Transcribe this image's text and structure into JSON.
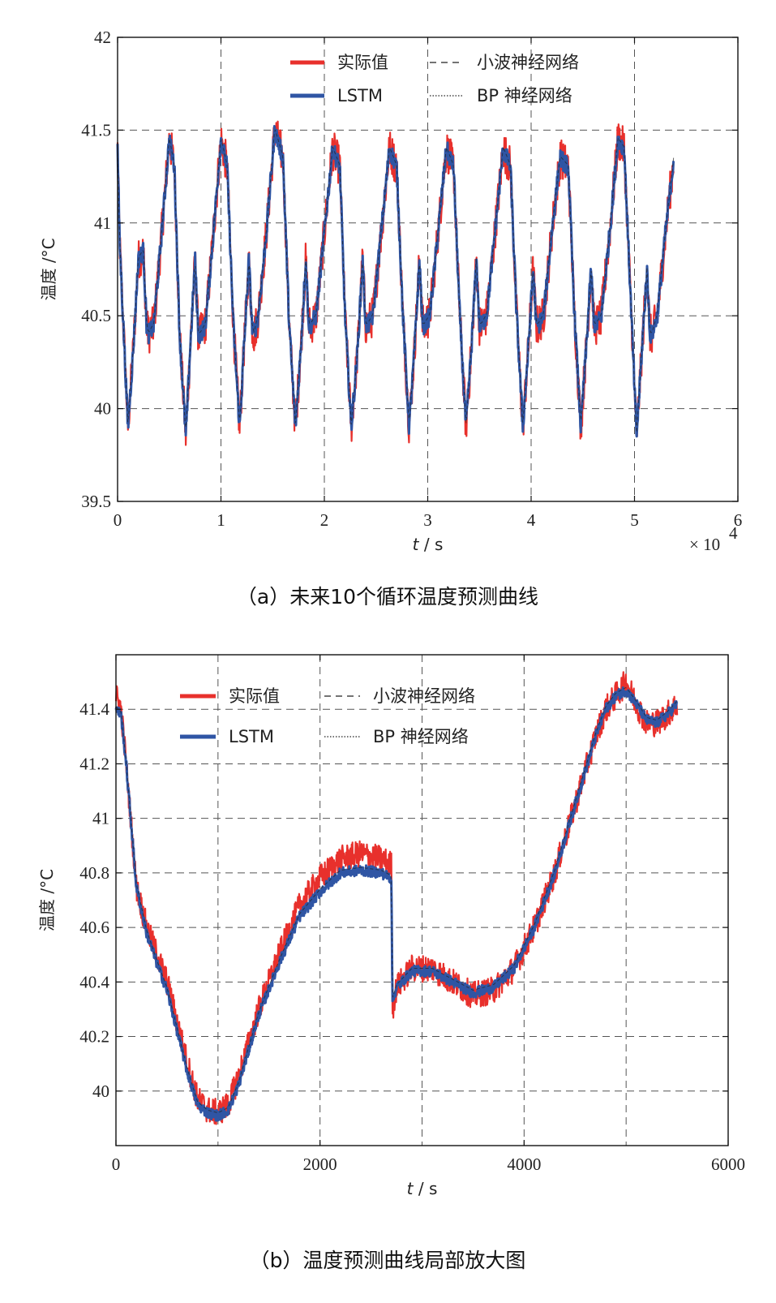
{
  "chart_data": [
    {
      "type": "line",
      "caption": "（a）未来10个循环温度预测曲线",
      "xlabel_italic": "t",
      "xlabel_unit": " / s",
      "ylabel": "温度 /°C",
      "xlim": [
        0,
        6
      ],
      "ylim": [
        39.5,
        42
      ],
      "x_ticks": [
        "0",
        "1",
        "2",
        "3",
        "4",
        "5",
        "6"
      ],
      "y_ticks": [
        "39.5",
        "40",
        "40.5",
        "41",
        "41.5",
        "42"
      ],
      "x_multiplier": "× 10",
      "x_multiplier_exp": "4",
      "grid": true,
      "legend": [
        {
          "label": "实际值",
          "style": "solid",
          "color": "#e8302c"
        },
        {
          "label": "LSTM",
          "style": "solid",
          "color": "#2f55a4"
        },
        {
          "label": "小波神经网络",
          "style": "dashed",
          "color": "#222222"
        },
        {
          "label": "BP 神经网络",
          "style": "dotted",
          "color": "#222222"
        }
      ],
      "series": [
        {
          "name": "实际值",
          "color": "#e8302c",
          "noise": 0.11,
          "x": [
            0,
            0.02,
            0.06,
            0.1,
            0.15,
            0.2,
            0.25,
            0.28,
            0.3,
            0.35,
            0.42,
            0.5,
            0.55,
            0.6,
            0.66,
            0.7,
            0.75,
            0.78,
            0.8,
            0.85,
            0.92,
            1.0,
            1.06,
            1.12,
            1.18,
            1.22,
            1.27,
            1.3,
            1.32,
            1.36,
            1.44,
            1.52,
            1.6,
            1.66,
            1.72,
            1.77,
            1.82,
            1.85,
            1.87,
            1.92,
            2.0,
            2.08,
            2.15,
            2.2,
            2.26,
            2.32,
            2.37,
            2.4,
            2.42,
            2.47,
            2.55,
            2.63,
            2.7,
            2.76,
            2.82,
            2.87,
            2.92,
            2.95,
            2.97,
            3.02,
            3.1,
            3.18,
            3.25,
            3.31,
            3.37,
            3.42,
            3.47,
            3.5,
            3.52,
            3.57,
            3.65,
            3.73,
            3.8,
            3.86,
            3.92,
            3.97,
            4.02,
            4.05,
            4.07,
            4.12,
            4.2,
            4.28,
            4.36,
            4.42,
            4.48,
            4.53,
            4.58,
            4.61,
            4.63,
            4.68,
            4.76,
            4.84,
            4.9,
            4.97,
            5.02,
            5.07,
            5.12,
            5.15,
            5.17,
            5.22,
            5.3,
            5.38
          ],
          "y": [
            41.4,
            40.9,
            40.4,
            39.9,
            40.3,
            40.8,
            40.85,
            40.45,
            40.4,
            40.45,
            40.9,
            41.45,
            41.3,
            40.4,
            39.85,
            40.3,
            40.8,
            40.4,
            40.4,
            40.45,
            40.9,
            41.45,
            41.3,
            40.45,
            39.9,
            40.3,
            40.8,
            40.45,
            40.4,
            40.5,
            40.95,
            41.5,
            41.35,
            40.45,
            39.9,
            40.3,
            40.8,
            40.45,
            40.45,
            40.5,
            40.95,
            41.4,
            41.3,
            40.5,
            39.9,
            40.3,
            40.8,
            40.45,
            40.45,
            40.5,
            40.95,
            41.4,
            41.3,
            40.5,
            39.9,
            40.3,
            40.8,
            40.45,
            40.45,
            40.5,
            40.95,
            41.4,
            41.3,
            40.5,
            39.9,
            40.3,
            40.8,
            40.45,
            40.45,
            40.5,
            40.95,
            41.4,
            41.3,
            40.5,
            39.9,
            40.3,
            40.75,
            40.45,
            40.45,
            40.5,
            40.95,
            41.35,
            41.3,
            40.5,
            39.9,
            40.3,
            40.75,
            40.45,
            40.45,
            40.5,
            40.95,
            41.45,
            41.4,
            40.5,
            39.85,
            40.3,
            40.75,
            40.4,
            40.4,
            40.5,
            40.95,
            41.35
          ]
        },
        {
          "name": "LSTM",
          "color": "#2f55a4",
          "noise": 0.05,
          "x": [
            0,
            0.02,
            0.06,
            0.1,
            0.15,
            0.2,
            0.25,
            0.28,
            0.3,
            0.35,
            0.42,
            0.5,
            0.55,
            0.6,
            0.66,
            0.7,
            0.75,
            0.78,
            0.8,
            0.85,
            0.92,
            1.0,
            1.06,
            1.12,
            1.18,
            1.22,
            1.27,
            1.3,
            1.32,
            1.36,
            1.44,
            1.52,
            1.6,
            1.66,
            1.72,
            1.77,
            1.82,
            1.85,
            1.87,
            1.92,
            2.0,
            2.08,
            2.15,
            2.2,
            2.26,
            2.32,
            2.37,
            2.4,
            2.42,
            2.47,
            2.55,
            2.63,
            2.7,
            2.76,
            2.82,
            2.87,
            2.92,
            2.95,
            2.97,
            3.02,
            3.1,
            3.18,
            3.25,
            3.31,
            3.37,
            3.42,
            3.47,
            3.5,
            3.52,
            3.57,
            3.65,
            3.73,
            3.8,
            3.86,
            3.92,
            3.97,
            4.02,
            4.05,
            4.07,
            4.12,
            4.2,
            4.28,
            4.36,
            4.42,
            4.48,
            4.53,
            4.58,
            4.61,
            4.63,
            4.68,
            4.76,
            4.84,
            4.9,
            4.97,
            5.02,
            5.07,
            5.12,
            5.15,
            5.17,
            5.22,
            5.3,
            5.38
          ],
          "y": [
            41.4,
            40.9,
            40.4,
            39.9,
            40.3,
            40.8,
            40.85,
            40.45,
            40.4,
            40.45,
            40.9,
            41.45,
            41.3,
            40.4,
            39.85,
            40.3,
            40.8,
            40.4,
            40.4,
            40.45,
            40.9,
            41.45,
            41.3,
            40.45,
            39.9,
            40.3,
            40.8,
            40.45,
            40.4,
            40.5,
            40.95,
            41.5,
            41.35,
            40.45,
            39.9,
            40.3,
            40.8,
            40.45,
            40.45,
            40.5,
            40.95,
            41.4,
            41.3,
            40.5,
            39.9,
            40.3,
            40.8,
            40.45,
            40.45,
            40.5,
            40.95,
            41.4,
            41.3,
            40.5,
            39.9,
            40.3,
            40.8,
            40.45,
            40.45,
            40.5,
            40.95,
            41.4,
            41.3,
            40.5,
            39.9,
            40.3,
            40.8,
            40.45,
            40.45,
            40.5,
            40.95,
            41.4,
            41.3,
            40.5,
            39.9,
            40.3,
            40.75,
            40.45,
            40.45,
            40.5,
            40.95,
            41.35,
            41.3,
            40.5,
            39.9,
            40.3,
            40.75,
            40.45,
            40.45,
            40.5,
            40.95,
            41.45,
            41.4,
            40.5,
            39.85,
            40.3,
            40.75,
            40.4,
            40.4,
            40.5,
            40.95,
            41.35
          ]
        }
      ]
    },
    {
      "type": "line",
      "caption": "（b）温度预测曲线局部放大图",
      "xlabel_italic": "t",
      "xlabel_unit": " / s",
      "ylabel": "温度 /°C",
      "xlim": [
        0,
        6000
      ],
      "ylim": [
        39.8,
        41.6
      ],
      "y_tick_values": [
        40,
        40.2,
        40.4,
        40.6,
        40.8,
        41,
        41.2,
        41.4
      ],
      "x_ticks": [
        "0",
        "2000",
        "4000",
        "6000"
      ],
      "x_tick_values": [
        0,
        2000,
        4000,
        6000
      ],
      "y_ticks": [
        "40",
        "40.2",
        "40.4",
        "40.6",
        "40.8",
        "41",
        "41.2",
        "41.4"
      ],
      "x_gridlines": [
        0,
        1000,
        2000,
        3000,
        4000,
        5000,
        6000
      ],
      "grid": true,
      "legend": [
        {
          "label": "实际值",
          "style": "solid",
          "color": "#e8302c"
        },
        {
          "label": "LSTM",
          "style": "solid",
          "color": "#2f55a4"
        },
        {
          "label": "小波神经网络",
          "style": "dashed",
          "color": "#222222"
        },
        {
          "label": "BP 神经网络",
          "style": "dotted",
          "color": "#222222"
        }
      ],
      "series": [
        {
          "name": "实际值",
          "color": "#e8302c",
          "noise": 0.05,
          "x": [
            0,
            50,
            100,
            200,
            300,
            400,
            500,
            600,
            700,
            800,
            900,
            1000,
            1100,
            1200,
            1400,
            1600,
            1800,
            2000,
            2200,
            2400,
            2600,
            2700,
            2710,
            2750,
            2900,
            3100,
            3300,
            3500,
            3700,
            3900,
            4100,
            4300,
            4500,
            4700,
            4800,
            4900,
            5000,
            5100,
            5200,
            5300,
            5400,
            5500
          ],
          "x_is_seconds": true,
          "y": [
            41.45,
            41.4,
            41.2,
            40.75,
            40.6,
            40.5,
            40.4,
            40.25,
            40.1,
            39.97,
            39.93,
            39.92,
            39.95,
            40.05,
            40.3,
            40.5,
            40.68,
            40.78,
            40.85,
            40.87,
            40.85,
            40.83,
            40.3,
            40.38,
            40.45,
            40.45,
            40.4,
            40.35,
            40.37,
            40.45,
            40.6,
            40.8,
            41.05,
            41.3,
            41.4,
            41.45,
            41.5,
            41.42,
            41.35,
            41.35,
            41.38,
            41.42
          ]
        },
        {
          "name": "LSTM",
          "color": "#2f55a4",
          "noise": 0.02,
          "x": [
            0,
            50,
            100,
            200,
            300,
            400,
            500,
            600,
            700,
            800,
            900,
            1000,
            1100,
            1200,
            1400,
            1600,
            1800,
            2000,
            2200,
            2400,
            2600,
            2700,
            2710,
            2750,
            2900,
            3100,
            3300,
            3500,
            3700,
            3900,
            4100,
            4300,
            4500,
            4700,
            4800,
            4900,
            5000,
            5100,
            5200,
            5300,
            5400,
            5500
          ],
          "y": [
            41.4,
            41.38,
            41.2,
            40.75,
            40.58,
            40.47,
            40.37,
            40.22,
            40.07,
            39.95,
            39.92,
            39.91,
            39.93,
            40.02,
            40.28,
            40.47,
            40.64,
            40.73,
            40.8,
            40.81,
            40.8,
            40.78,
            40.33,
            40.38,
            40.44,
            40.44,
            40.4,
            40.36,
            40.38,
            40.45,
            40.6,
            40.8,
            41.05,
            41.3,
            41.4,
            41.45,
            41.47,
            41.42,
            41.36,
            41.35,
            41.38,
            41.42
          ]
        }
      ]
    }
  ]
}
